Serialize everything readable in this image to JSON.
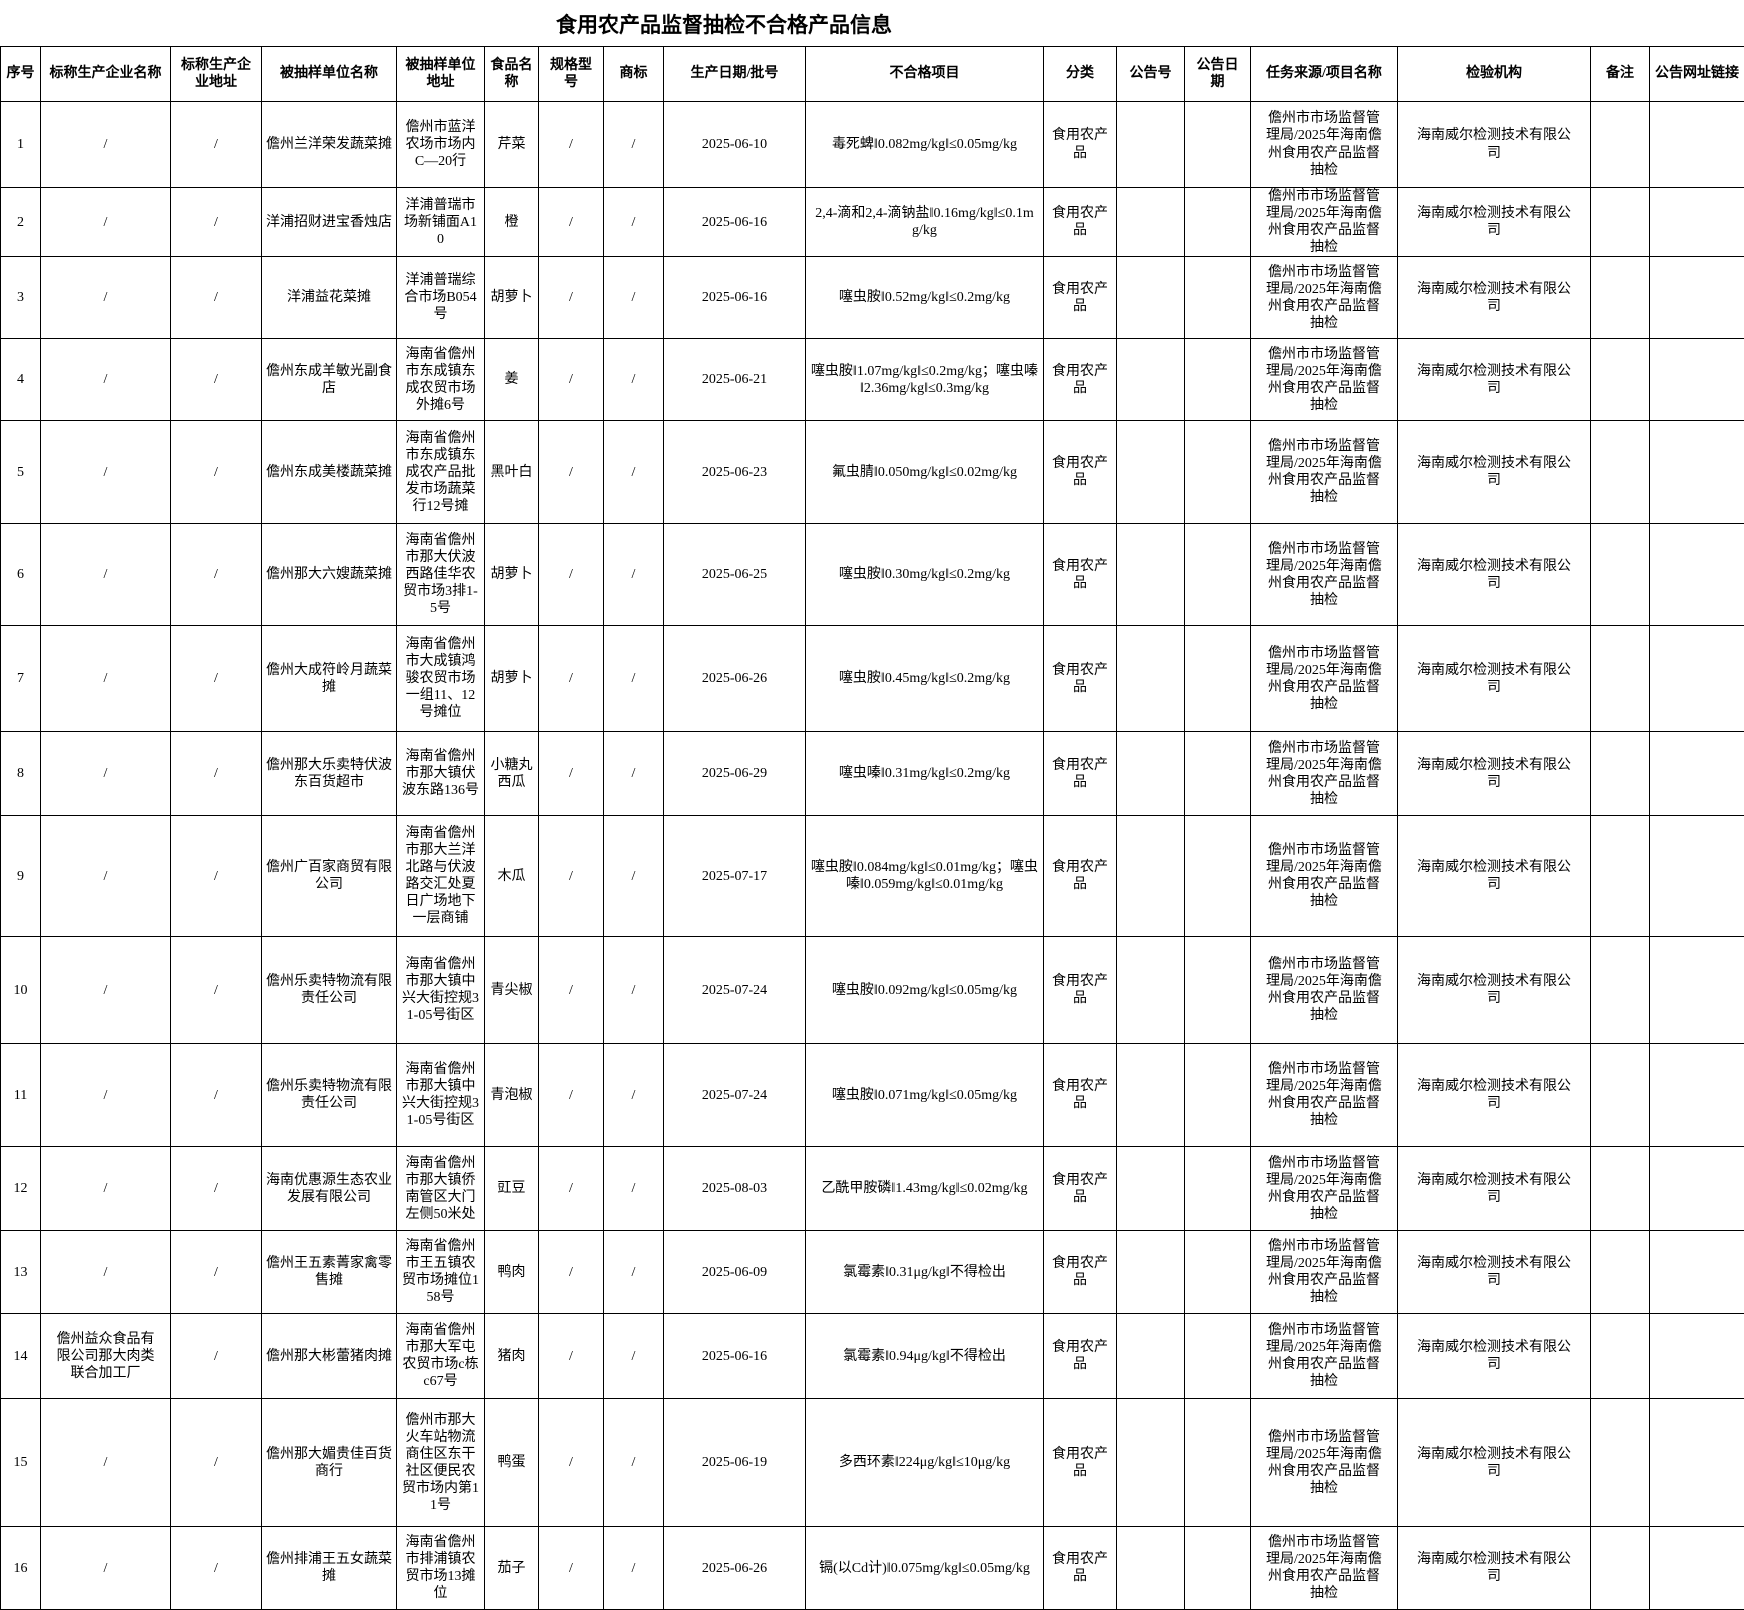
{
  "title": "食用农产品监督抽检不合格产品信息",
  "table": {
    "columns": [
      "序号",
      "标称生产企业名称",
      "标称生产企业地址",
      "被抽样单位名称",
      "被抽样单位地址",
      "食品名称",
      "规格型号",
      "商标",
      "生产日期/批号",
      "不合格项目",
      "分类",
      "公告号",
      "公告日期",
      "任务来源/项目名称",
      "检验机构",
      "备注",
      "公告网址链接"
    ],
    "column_keys": [
      "serial-number",
      "producer-name",
      "producer-address",
      "sampled-unit-name",
      "sampled-unit-address",
      "food-name",
      "spec-model",
      "brand",
      "production-date",
      "failed-item",
      "category",
      "notice-number",
      "notice-date",
      "task-source",
      "inspection-agency",
      "remark",
      "notice-link"
    ],
    "rows": [
      [
        "1",
        "/",
        "/",
        "儋州兰洋荣发蔬菜摊",
        "儋州市蓝洋农场市场内C—20行",
        "芹菜",
        "/",
        "/",
        "2025-06-10",
        "毒死蜱‖0.082mg/kg‖≤0.05mg/kg",
        "食用农产品",
        "",
        "",
        "儋州市市场监督管理局/2025年海南儋州食用农产品监督抽检",
        "海南威尔检测技术有限公司",
        "",
        ""
      ],
      [
        "2",
        "/",
        "/",
        "洋浦招财进宝香烛店",
        "洋浦普瑞市场新铺面A10",
        "橙",
        "/",
        "/",
        "2025-06-16",
        "2,4-滴和2,4-滴钠盐‖0.16mg/kg‖≤0.1mg/kg",
        "食用农产品",
        "",
        "",
        "儋州市市场监督管理局/2025年海南儋州食用农产品监督抽检",
        "海南威尔检测技术有限公司",
        "",
        ""
      ],
      [
        "3",
        "/",
        "/",
        "洋浦益花菜摊",
        "洋浦普瑞综合市场B054号",
        "胡萝卜",
        "/",
        "/",
        "2025-06-16",
        "噻虫胺‖0.52mg/kg‖≤0.2mg/kg",
        "食用农产品",
        "",
        "",
        "儋州市市场监督管理局/2025年海南儋州食用农产品监督抽检",
        "海南威尔检测技术有限公司",
        "",
        ""
      ],
      [
        "4",
        "/",
        "/",
        "儋州东成羊敏光副食店",
        "海南省儋州市东成镇东成农贸市场外摊6号",
        "姜",
        "/",
        "/",
        "2025-06-21",
        "噻虫胺‖1.07mg/kg‖≤0.2mg/kg；噻虫嗪‖2.36mg/kg‖≤0.3mg/kg",
        "食用农产品",
        "",
        "",
        "儋州市市场监督管理局/2025年海南儋州食用农产品监督抽检",
        "海南威尔检测技术有限公司",
        "",
        ""
      ],
      [
        "5",
        "/",
        "/",
        "儋州东成美楼蔬菜摊",
        "海南省儋州市东成镇东成农产品批发市场蔬菜行12号摊",
        "黑叶白",
        "/",
        "/",
        "2025-06-23",
        "氟虫腈‖0.050mg/kg‖≤0.02mg/kg",
        "食用农产品",
        "",
        "",
        "儋州市市场监督管理局/2025年海南儋州食用农产品监督抽检",
        "海南威尔检测技术有限公司",
        "",
        ""
      ],
      [
        "6",
        "/",
        "/",
        "儋州那大六嫂蔬菜摊",
        "海南省儋州市那大伏波西路佳华农贸市场3排1-5号",
        "胡萝卜",
        "/",
        "/",
        "2025-06-25",
        "噻虫胺‖0.30mg/kg‖≤0.2mg/kg",
        "食用农产品",
        "",
        "",
        "儋州市市场监督管理局/2025年海南儋州食用农产品监督抽检",
        "海南威尔检测技术有限公司",
        "",
        ""
      ],
      [
        "7",
        "/",
        "/",
        "儋州大成符岭月蔬菜摊",
        "海南省儋州市大成镇鸿骏农贸市场一组11、12号摊位",
        "胡萝卜",
        "/",
        "/",
        "2025-06-26",
        "噻虫胺‖0.45mg/kg‖≤0.2mg/kg",
        "食用农产品",
        "",
        "",
        "儋州市市场监督管理局/2025年海南儋州食用农产品监督抽检",
        "海南威尔检测技术有限公司",
        "",
        ""
      ],
      [
        "8",
        "/",
        "/",
        "儋州那大乐卖特伏波东百货超市",
        "海南省儋州市那大镇伏波东路136号",
        "小糖丸西瓜",
        "/",
        "/",
        "2025-06-29",
        "噻虫嗪‖0.31mg/kg‖≤0.2mg/kg",
        "食用农产品",
        "",
        "",
        "儋州市市场监督管理局/2025年海南儋州食用农产品监督抽检",
        "海南威尔检测技术有限公司",
        "",
        ""
      ],
      [
        "9",
        "/",
        "/",
        "儋州广百家商贸有限公司",
        "海南省儋州市那大兰洋北路与伏波路交汇处夏日广场地下一层商铺",
        "木瓜",
        "/",
        "/",
        "2025-07-17",
        "噻虫胺‖0.084mg/kg‖≤0.01mg/kg；噻虫嗪‖0.059mg/kg‖≤0.01mg/kg",
        "食用农产品",
        "",
        "",
        "儋州市市场监督管理局/2025年海南儋州食用农产品监督抽检",
        "海南威尔检测技术有限公司",
        "",
        ""
      ],
      [
        "10",
        "/",
        "/",
        "儋州乐卖特物流有限责任公司",
        "海南省儋州市那大镇中兴大街控规31-05号街区",
        "青尖椒",
        "/",
        "/",
        "2025-07-24",
        "噻虫胺‖0.092mg/kg‖≤0.05mg/kg",
        "食用农产品",
        "",
        "",
        "儋州市市场监督管理局/2025年海南儋州食用农产品监督抽检",
        "海南威尔检测技术有限公司",
        "",
        ""
      ],
      [
        "11",
        "/",
        "/",
        "儋州乐卖特物流有限责任公司",
        "海南省儋州市那大镇中兴大街控规31-05号街区",
        "青泡椒",
        "/",
        "/",
        "2025-07-24",
        "噻虫胺‖0.071mg/kg‖≤0.05mg/kg",
        "食用农产品",
        "",
        "",
        "儋州市市场监督管理局/2025年海南儋州食用农产品监督抽检",
        "海南威尔检测技术有限公司",
        "",
        ""
      ],
      [
        "12",
        "/",
        "/",
        "海南优惠源生态农业发展有限公司",
        "海南省儋州市那大镇侨南管区大门左侧50米处",
        "豇豆",
        "/",
        "/",
        "2025-08-03",
        "乙酰甲胺磷‖1.43mg/kg‖≤0.02mg/kg",
        "食用农产品",
        "",
        "",
        "儋州市市场监督管理局/2025年海南儋州食用农产品监督抽检",
        "海南威尔检测技术有限公司",
        "",
        ""
      ],
      [
        "13",
        "/",
        "/",
        "儋州王五素菁家禽零售摊",
        "海南省儋州市王五镇农贸市场摊位158号",
        "鸭肉",
        "/",
        "/",
        "2025-06-09",
        "氯霉素‖0.31μg/kg‖不得检出",
        "食用农产品",
        "",
        "",
        "儋州市市场监督管理局/2025年海南儋州食用农产品监督抽检",
        "海南威尔检测技术有限公司",
        "",
        ""
      ],
      [
        "14",
        "儋州益众食品有限公司那大肉类联合加工厂",
        "/",
        "儋州那大彬蕾猪肉摊",
        "海南省儋州市那大军屯农贸市场c栋c67号",
        "猪肉",
        "/",
        "/",
        "2025-06-16",
        "氯霉素‖0.94μg/kg‖不得检出",
        "食用农产品",
        "",
        "",
        "儋州市市场监督管理局/2025年海南儋州食用农产品监督抽检",
        "海南威尔检测技术有限公司",
        "",
        ""
      ],
      [
        "15",
        "/",
        "/",
        "儋州那大媚贵佳百货商行",
        "儋州市那大火车站物流商住区东干社区便民农贸市场内第11号",
        "鸭蛋",
        "/",
        "/",
        "2025-06-19",
        "多西环素‖224μg/kg‖≤10μg/kg",
        "食用农产品",
        "",
        "",
        "儋州市市场监督管理局/2025年海南儋州食用农产品监督抽检",
        "海南威尔检测技术有限公司",
        "",
        ""
      ],
      [
        "16",
        "/",
        "/",
        "儋州排浦王五女蔬菜摊",
        "海南省儋州市排浦镇农贸市场13摊位",
        "茄子",
        "/",
        "/",
        "2025-06-26",
        "镉(以Cd计)‖0.075mg/kg‖≤0.05mg/kg",
        "食用农产品",
        "",
        "",
        "儋州市市场监督管理局/2025年海南儋州食用农产品监督抽检",
        "海南威尔检测技术有限公司",
        "",
        ""
      ]
    ]
  }
}
